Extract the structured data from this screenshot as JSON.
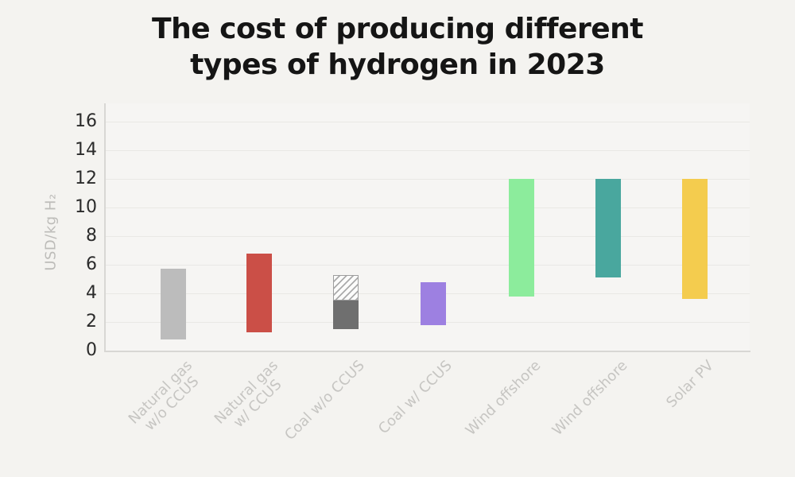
{
  "title": {
    "line1": "The cost of producing different",
    "line2": "types of hydrogen in 2023"
  },
  "chart_data": {
    "type": "bar",
    "variant": "floating-range-bars",
    "title": "The cost of producing different types of hydrogen in 2023",
    "xlabel": "",
    "ylabel": "USD/kg H₂",
    "ylim": [
      0,
      16
    ],
    "yticks": [
      0,
      2,
      4,
      6,
      8,
      10,
      12,
      14,
      16
    ],
    "grid": true,
    "legend": "none",
    "categories": [
      "Natural gas w/o CCUS",
      "Natural gas w/ CCUS",
      "Coal w/o CCUS",
      "Coal w/ CCUS",
      "Wind offshore",
      "Wind offshore",
      "Solar PV"
    ],
    "bars": [
      {
        "name": "natural-gas-wo-ccus",
        "label_lines": [
          "Natural gas",
          "w/o CCUS"
        ],
        "low": 0.8,
        "high": 5.7,
        "color": "#bcbcbc"
      },
      {
        "name": "natural-gas-w-ccus",
        "label_lines": [
          "Natural gas",
          "w/ CCUS"
        ],
        "low": 1.3,
        "high": 6.8,
        "color": "#cb4f47"
      },
      {
        "name": "coal-wo-ccus",
        "label_lines": [
          "Coal w/o CCUS"
        ],
        "low": 1.5,
        "high": 5.3,
        "segments": [
          {
            "from": 1.5,
            "to": 3.5,
            "style": "solid",
            "color": "#6f6f6f"
          },
          {
            "from": 3.5,
            "to": 5.3,
            "style": "hatched",
            "color": "#ababab"
          }
        ]
      },
      {
        "name": "coal-w-ccus",
        "label_lines": [
          "Coal w/ CCUS"
        ],
        "low": 1.8,
        "high": 4.8,
        "color": "#9d80e1"
      },
      {
        "name": "wind-offshore-1",
        "label_lines": [
          "Wind offshore"
        ],
        "low": 3.8,
        "high": 12,
        "color": "#8cec9c"
      },
      {
        "name": "wind-offshore-2",
        "label_lines": [
          "Wind offshore"
        ],
        "low": 5.1,
        "high": 12,
        "color": "#49a79e"
      },
      {
        "name": "solar-pv",
        "label_lines": [
          "Solar PV"
        ],
        "low": 3.6,
        "high": 12,
        "color": "#f4cc4e"
      }
    ]
  }
}
